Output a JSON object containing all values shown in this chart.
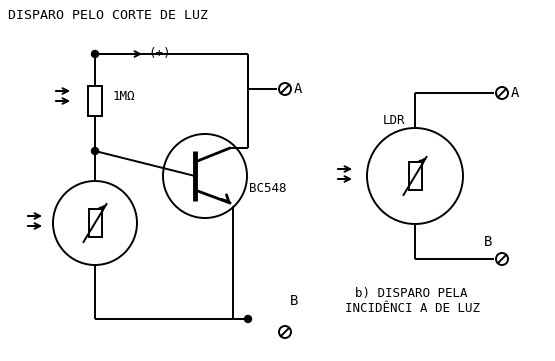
{
  "title": "DISPARO PELO CORTE DE LUZ",
  "label_1M": "1MΩ",
  "label_bc548": "BC548",
  "label_ldr": "LDR",
  "label_plus": "(+)",
  "label_A_left": "A",
  "label_B_left": "B",
  "label_A_right": "A",
  "label_B_right": "B",
  "label_b1": "b) DISPARO PELA",
  "label_b2": "INCIDÊNCI A DE LUZ",
  "bg_color": "#ffffff",
  "line_color": "#000000",
  "figsize": [
    5.55,
    3.61
  ],
  "dpi": 100
}
